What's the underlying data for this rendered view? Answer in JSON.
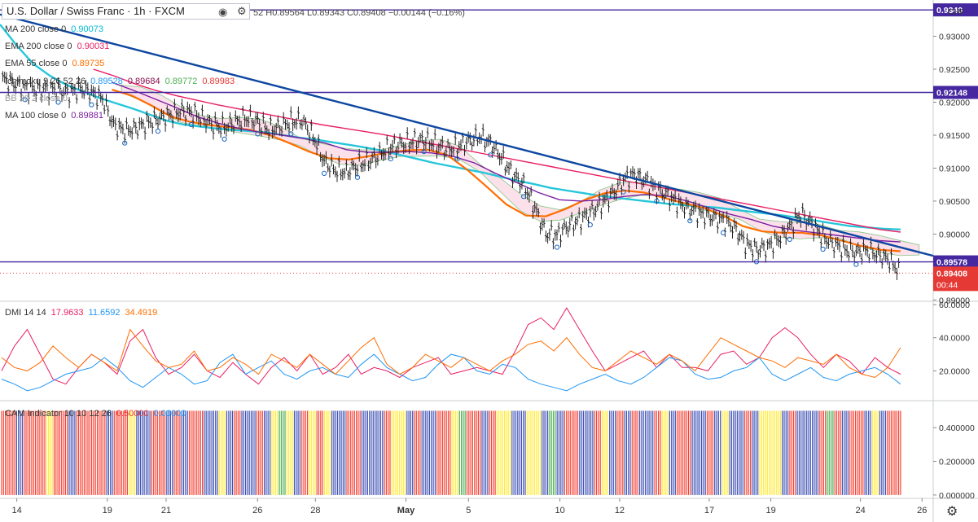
{
  "header": {
    "symbol": "U.S. Dollar / Swiss Franc · 1h · FXCM",
    "ohlc": "52 H0.89564 L0.89343 C0.89408 −0.00144 (−0.16%)",
    "currency": "CHF"
  },
  "legend": [
    {
      "name": "MA 200 close 0",
      "values": [
        "0.90073"
      ],
      "colors": [
        "#00bcd4"
      ]
    },
    {
      "name": "EMA 200 close 0",
      "values": [
        "0.90031"
      ],
      "colors": [
        "#e91e63"
      ]
    },
    {
      "name": "EMA 55 close 0",
      "values": [
        "0.89735"
      ],
      "colors": [
        "#ff6d00"
      ]
    },
    {
      "name": "Ichimoku 9 26 52 26",
      "values": [
        "0.89528",
        "0.89684",
        "0.89772",
        "0.89983"
      ],
      "colors": [
        "#2196f3",
        "#880e4f",
        "#4caf50",
        "#e53935"
      ]
    },
    {
      "name": "BB 20 2 close 0",
      "values": [],
      "colors": []
    },
    {
      "name": "MA 100 close 0",
      "values": [
        "0.89881"
      ],
      "colors": [
        "#7b1fa2"
      ]
    }
  ],
  "dmi_legend": {
    "name": "DMI 14 14",
    "values": [
      "17.9633",
      "11.6592",
      "34.4919"
    ],
    "colors": [
      "#e91e63",
      "#2196f3",
      "#ff6d00"
    ]
  },
  "cam_legend": {
    "name": "CAM Indicator 10 10 12 26",
    "values": [
      "0.50000",
      "0.00000"
    ],
    "colors": [
      "#e53935",
      "#2196f3"
    ]
  },
  "colors": {
    "down_wick": "#222222",
    "trendline": "#0d47a1",
    "horizontal": "#4527a0",
    "ma200": "#26c6da",
    "ema200": "#e91e63",
    "ema55": "#ff6d00",
    "ma100": "#7b1fa2",
    "dmi_plus": "#e91e63",
    "dmi_minus": "#2196f3",
    "adx": "#ff6d00",
    "cam_red": "#f44336",
    "cam_blue": "#3f51b5",
    "cam_yellow": "#ffeb3b",
    "cam_green": "#4caf50",
    "last_price_bg": "#e53935",
    "hline_label_bg": "#4527a0"
  },
  "chart_data": [
    {
      "type": "line",
      "title": "U.S. Dollar / Swiss Franc · 1h · FXCM",
      "x_ticks": [
        "14",
        "19",
        "21",
        "26",
        "28",
        "May",
        "5",
        "10",
        "12",
        "17",
        "19",
        "24",
        "26"
      ],
      "y_ticks": [
        "0.93000",
        "0.92500",
        "0.92000",
        "0.91500",
        "0.91000",
        "0.90500",
        "0.90000",
        "0.89000"
      ],
      "ylim": [
        0.8898,
        0.9355
      ],
      "horizontal_levels": [
        {
          "label": "0.92148",
          "value": 0.92148
        },
        {
          "label": "0.89578",
          "value": 0.89578
        },
        {
          "label": "0.9340",
          "value": 0.934
        }
      ],
      "last_price": {
        "label": "0.89408",
        "value": 0.89408,
        "countdown": "00:44"
      },
      "trendline": {
        "from": {
          "x": 0,
          "y": 0.9333
        },
        "to": {
          "x": 1,
          "y": 0.8967
        }
      },
      "series": [
        {
          "name": "Price close",
          "values": [
            0.9235,
            0.9228,
            0.9222,
            0.9219,
            0.922,
            0.9218,
            0.9214,
            0.922,
            0.9214,
            0.9205,
            0.9165,
            0.9156,
            0.916,
            0.9168,
            0.9174,
            0.918,
            0.9186,
            0.9184,
            0.9175,
            0.9165,
            0.9162,
            0.917,
            0.9176,
            0.917,
            0.9158,
            0.9163,
            0.917,
            0.9172,
            0.9148,
            0.911,
            0.9096,
            0.9094,
            0.9104,
            0.911,
            0.912,
            0.9132,
            0.9136,
            0.914,
            0.9143,
            0.9136,
            0.9128,
            0.9132,
            0.914,
            0.9148,
            0.9138,
            0.9115,
            0.909,
            0.9075,
            0.904,
            0.9,
            0.8998,
            0.9012,
            0.902,
            0.9032,
            0.9045,
            0.906,
            0.9082,
            0.909,
            0.908,
            0.9068,
            0.9058,
            0.9045,
            0.9038,
            0.903,
            0.9025,
            0.902,
            0.901,
            0.8985,
            0.8976,
            0.898,
            0.8992,
            0.901,
            0.903,
            0.9015,
            0.8995,
            0.8984,
            0.8976,
            0.8972,
            0.8975,
            0.8968,
            0.896,
            0.8941
          ]
        },
        {
          "name": "MA 200",
          "values": [
            0.9318,
            0.9286,
            0.9258,
            0.924,
            0.9226,
            0.9216,
            0.9206,
            0.9198,
            0.919,
            0.9181,
            0.9172,
            0.9166,
            0.9163,
            0.916,
            0.9158,
            0.9156,
            0.9154,
            0.915,
            0.9146,
            0.9143,
            0.9139,
            0.9135,
            0.9131,
            0.9126,
            0.912,
            0.9114,
            0.9108,
            0.9103,
            0.9098,
            0.9093,
            0.9087,
            0.9081,
            0.9076,
            0.907,
            0.9066,
            0.9062,
            0.9058,
            0.9055,
            0.9052,
            0.9049,
            0.9046,
            0.9044,
            0.9042,
            0.904,
            0.9037,
            0.9034,
            0.9031,
            0.9028,
            0.9024,
            0.902,
            0.9016,
            0.9012,
            0.901,
            0.9008,
            0.9007
          ]
        },
        {
          "name": "EMA 200",
          "values": [
            0.925,
            0.924,
            0.9228,
            0.9218,
            0.921,
            0.9203,
            0.9196,
            0.919,
            0.9184,
            0.9178,
            0.9172,
            0.9166,
            0.9161,
            0.9156,
            0.9151,
            0.9145,
            0.9139,
            0.9133,
            0.9127,
            0.9121,
            0.9115,
            0.9109,
            0.9103,
            0.9097,
            0.9091,
            0.9085,
            0.9079,
            0.9073,
            0.9067,
            0.9061,
            0.9055,
            0.9049,
            0.9043,
            0.9037,
            0.9031,
            0.9025,
            0.9019,
            0.9013,
            0.9007,
            0.9003
          ]
        },
        {
          "name": "EMA 55",
          "values": [
            0.9219,
            0.921,
            0.9195,
            0.9178,
            0.917,
            0.9165,
            0.9162,
            0.9158,
            0.915,
            0.9138,
            0.9125,
            0.9115,
            0.9113,
            0.9118,
            0.9124,
            0.9127,
            0.9128,
            0.912,
            0.9098,
            0.9072,
            0.9045,
            0.9028,
            0.9027,
            0.9038,
            0.9052,
            0.9062,
            0.9066,
            0.9063,
            0.9055,
            0.9047,
            0.904,
            0.9028,
            0.9012,
            0.9004,
            0.9002,
            0.9002,
            0.8998,
            0.899,
            0.8982,
            0.8976,
            0.8974
          ]
        },
        {
          "name": "MA 100",
          "values": [
            0.923,
            0.9218,
            0.9205,
            0.9192,
            0.9178,
            0.9168,
            0.916,
            0.9154,
            0.915,
            0.9145,
            0.9138,
            0.9128,
            0.9124,
            0.9124,
            0.9125,
            0.9123,
            0.9118,
            0.9108,
            0.9092,
            0.9078,
            0.9063,
            0.9052,
            0.905,
            0.9052,
            0.9057,
            0.906,
            0.9058,
            0.905,
            0.904,
            0.903,
            0.9022,
            0.9012,
            0.9006,
            0.9002,
            0.8998,
            0.8994,
            0.899,
            0.8988
          ]
        }
      ]
    },
    {
      "type": "line",
      "title": "DMI 14 14",
      "y_ticks": [
        "60.0000",
        "40.0000",
        "20.0000"
      ],
      "ylim": [
        2,
        62
      ],
      "series": [
        {
          "name": "+DI",
          "values": [
            20,
            35,
            45,
            30,
            15,
            12,
            22,
            30,
            25,
            18,
            38,
            45,
            28,
            18,
            22,
            30,
            20,
            16,
            25,
            18,
            12,
            22,
            28,
            20,
            30,
            18,
            22,
            30,
            18,
            22,
            20,
            16,
            22,
            25,
            28,
            18,
            20,
            22,
            20,
            18,
            32,
            48,
            52,
            45,
            58,
            45,
            32,
            20,
            24,
            28,
            32,
            22,
            30,
            22,
            22,
            20,
            30,
            32,
            24,
            28,
            40,
            46,
            40,
            30,
            22,
            30,
            26,
            18,
            28,
            22,
            18
          ]
        },
        {
          "name": "-DI",
          "values": [
            15,
            12,
            8,
            10,
            14,
            18,
            20,
            22,
            28,
            22,
            14,
            10,
            16,
            22,
            18,
            12,
            14,
            25,
            30,
            18,
            22,
            26,
            18,
            15,
            20,
            22,
            18,
            16,
            24,
            30,
            22,
            18,
            14,
            16,
            24,
            30,
            28,
            20,
            18,
            24,
            22,
            15,
            12,
            10,
            8,
            12,
            15,
            18,
            14,
            12,
            16,
            22,
            28,
            26,
            18,
            15,
            16,
            20,
            22,
            28,
            18,
            14,
            18,
            22,
            16,
            14,
            18,
            20,
            22,
            18,
            12
          ]
        },
        {
          "name": "ADX",
          "values": [
            28,
            22,
            20,
            25,
            35,
            28,
            22,
            30,
            25,
            20,
            45,
            35,
            26,
            22,
            24,
            32,
            20,
            22,
            28,
            24,
            18,
            30,
            26,
            22,
            30,
            24,
            18,
            26,
            34,
            40,
            24,
            18,
            22,
            30,
            26,
            22,
            28,
            24,
            20,
            26,
            30,
            36,
            38,
            32,
            40,
            30,
            22,
            20,
            26,
            32,
            28,
            24,
            30,
            26,
            20,
            30,
            40,
            36,
            32,
            28,
            26,
            22,
            28,
            26,
            24,
            30,
            22,
            18,
            16,
            22,
            34
          ]
        }
      ]
    },
    {
      "type": "bar",
      "title": "CAM Indicator 10 10 12 26",
      "y_ticks": [
        "0.400000",
        "0.200000",
        "0.000000"
      ],
      "ylim": [
        -0.02,
        0.56
      ],
      "bar_value": 0.5,
      "colors_sequence": [
        "red",
        "red",
        "blue",
        "red",
        "red",
        "red",
        "yellow",
        "red",
        "red",
        "blue",
        "red",
        "red",
        "red",
        "red",
        "blue",
        "red",
        "red",
        "yellow",
        "blue",
        "blue",
        "red",
        "red",
        "blue",
        "red",
        "blue",
        "red",
        "red",
        "blue",
        "blue",
        "yellow",
        "blue",
        "red",
        "blue",
        "blue",
        "red",
        "blue",
        "yellow",
        "green",
        "yellow",
        "blue",
        "red",
        "yellow",
        "red",
        "yellow",
        "blue",
        "blue",
        "red",
        "red",
        "blue",
        "blue",
        "blue",
        "red",
        "yellow",
        "yellow",
        "blue",
        "red",
        "blue",
        "blue",
        "red",
        "red",
        "yellow",
        "green",
        "red",
        "red",
        "blue",
        "red",
        "yellow",
        "yellow",
        "blue",
        "blue",
        "yellow",
        "yellow",
        "blue",
        "green",
        "blue",
        "red",
        "red",
        "blue",
        "blue",
        "red",
        "yellow",
        "blue",
        "red",
        "blue",
        "red",
        "blue",
        "blue",
        "red",
        "yellow",
        "blue",
        "red",
        "red",
        "blue",
        "blue",
        "red",
        "blue",
        "yellow",
        "blue",
        "blue",
        "red",
        "blue",
        "yellow",
        "yellow",
        "yellow",
        "blue",
        "red",
        "blue",
        "blue",
        "blue",
        "red",
        "green",
        "red",
        "blue",
        "red",
        "red",
        "blue",
        "yellow",
        "blue",
        "red",
        "red"
      ]
    }
  ]
}
